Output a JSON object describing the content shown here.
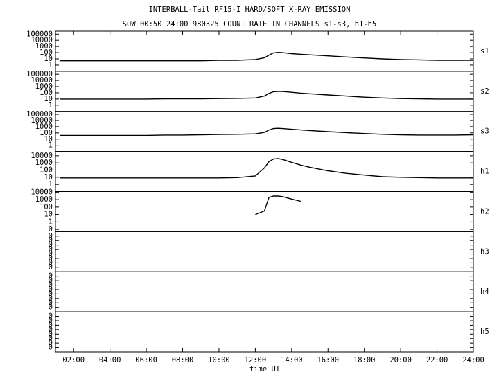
{
  "title": "INTERBALL-Tail RF15-I HARD/SOFT X-RAY EMISSION",
  "subtitle": "SOW 00:50 24:00 980325  COUNT RATE IN CHANNELS s1-s3, h1-h5",
  "xlabel": "time UT",
  "xlim": [
    1,
    24
  ],
  "xticks": [
    {
      "value": 2,
      "label": "02:00"
    },
    {
      "value": 4,
      "label": "04:00"
    },
    {
      "value": 6,
      "label": "06:00"
    },
    {
      "value": 8,
      "label": "08:00"
    },
    {
      "value": 10,
      "label": "10:00"
    },
    {
      "value": 12,
      "label": "12:00"
    },
    {
      "value": 14,
      "label": "14:00"
    },
    {
      "value": 16,
      "label": "16:00"
    },
    {
      "value": 18,
      "label": "18:00"
    },
    {
      "value": 20,
      "label": "20:00"
    },
    {
      "value": 22,
      "label": "22:00"
    },
    {
      "value": 24,
      "label": "24:00"
    }
  ],
  "x": [
    1.25,
    1.5,
    2,
    3,
    4,
    5,
    6,
    7,
    8,
    9,
    10,
    11,
    12,
    12.5,
    12.75,
    13,
    13.25,
    13.5,
    14,
    14.5,
    15,
    16,
    17,
    18,
    19,
    20,
    21,
    22,
    23,
    24
  ],
  "chart_data": [
    {
      "type": "line",
      "log": true,
      "ylim": [
        0.1,
        300000
      ],
      "yticks": [
        1,
        10,
        100,
        1000,
        10000,
        100000
      ],
      "series": [
        {
          "name": "s1",
          "color": "#000000",
          "values": [
            5,
            5,
            5,
            5,
            5,
            5,
            5,
            5,
            5,
            5,
            6,
            6,
            8,
            15,
            40,
            90,
            110,
            100,
            70,
            55,
            45,
            30,
            20,
            14,
            10,
            8,
            7,
            6,
            6,
            6
          ]
        }
      ]
    },
    {
      "type": "line",
      "log": true,
      "ylim": [
        0.1,
        300000
      ],
      "yticks": [
        1,
        10,
        100,
        1000,
        10000,
        100000
      ],
      "series": [
        {
          "name": "s2",
          "color": "#000000",
          "values": [
            10,
            10,
            10,
            10,
            10,
            10,
            10,
            11,
            11,
            11,
            12,
            13,
            15,
            30,
            80,
            150,
            170,
            160,
            120,
            90,
            70,
            45,
            30,
            20,
            15,
            12,
            11,
            10,
            10,
            10
          ]
        }
      ]
    },
    {
      "type": "line",
      "log": true,
      "ylim": [
        0.1,
        300000
      ],
      "yticks": [
        1,
        10,
        100,
        1000,
        10000,
        100000
      ],
      "series": [
        {
          "name": "s3",
          "color": "#000000",
          "values": [
            40,
            40,
            40,
            40,
            40,
            40,
            40,
            45,
            45,
            50,
            55,
            60,
            70,
            120,
            300,
            500,
            550,
            500,
            380,
            300,
            240,
            160,
            110,
            80,
            60,
            50,
            45,
            45,
            45,
            50
          ]
        }
      ]
    },
    {
      "type": "line",
      "log": true,
      "ylim": [
        0.1,
        40000
      ],
      "yticks": [
        1,
        10,
        100,
        1000,
        10000
      ],
      "series": [
        {
          "name": "h1",
          "color": "#000000",
          "values": [
            8,
            8,
            8,
            8,
            8,
            8,
            8,
            8,
            8,
            8,
            8,
            9,
            15,
            200,
            1500,
            3500,
            4000,
            3000,
            1200,
            500,
            250,
            80,
            35,
            20,
            12,
            10,
            9,
            8,
            8,
            8
          ]
        }
      ]
    },
    {
      "type": "line",
      "log": true,
      "ylim": [
        0.05,
        12000
      ],
      "yticks": [
        {
          "value": 0.1,
          "label": "0"
        },
        1,
        10,
        100,
        1000,
        10000
      ],
      "series": [
        {
          "name": "h2",
          "color": "#000000",
          "values": [
            null,
            null,
            null,
            null,
            null,
            null,
            null,
            null,
            null,
            null,
            null,
            null,
            10,
            30,
            2000,
            3000,
            3000,
            2500,
            1200,
            600,
            null,
            null,
            null,
            null,
            null,
            null,
            null,
            null,
            null,
            null
          ]
        }
      ]
    },
    {
      "type": "line",
      "log": false,
      "ylim": [
        0,
        0.9
      ],
      "label": "h3",
      "yticks": [
        {
          "value": 0.1,
          "label": "0"
        },
        {
          "value": 0.2,
          "label": "0"
        },
        {
          "value": 0.3,
          "label": "0"
        },
        {
          "value": 0.4,
          "label": "0"
        },
        {
          "value": 0.5,
          "label": "0"
        },
        {
          "value": 0.6,
          "label": "0"
        },
        {
          "value": 0.7,
          "label": "0"
        },
        {
          "value": 0.8,
          "label": "0"
        }
      ]
    },
    {
      "type": "line",
      "log": false,
      "ylim": [
        0,
        0.9
      ],
      "label": "h4",
      "yticks": [
        {
          "value": 0.1,
          "label": "0"
        },
        {
          "value": 0.2,
          "label": "0"
        },
        {
          "value": 0.3,
          "label": "0"
        },
        {
          "value": 0.4,
          "label": "0"
        },
        {
          "value": 0.5,
          "label": "0"
        },
        {
          "value": 0.6,
          "label": "0"
        },
        {
          "value": 0.7,
          "label": "0"
        },
        {
          "value": 0.8,
          "label": "0"
        }
      ]
    },
    {
      "type": "line",
      "log": false,
      "ylim": [
        0,
        0.9
      ],
      "label": "h5",
      "yticks": [
        {
          "value": 0.1,
          "label": "0"
        },
        {
          "value": 0.2,
          "label": "0"
        },
        {
          "value": 0.3,
          "label": "0"
        },
        {
          "value": 0.4,
          "label": "0"
        },
        {
          "value": 0.5,
          "label": "0"
        },
        {
          "value": 0.6,
          "label": "0"
        },
        {
          "value": 0.7,
          "label": "0"
        },
        {
          "value": 0.8,
          "label": "0"
        }
      ]
    }
  ]
}
